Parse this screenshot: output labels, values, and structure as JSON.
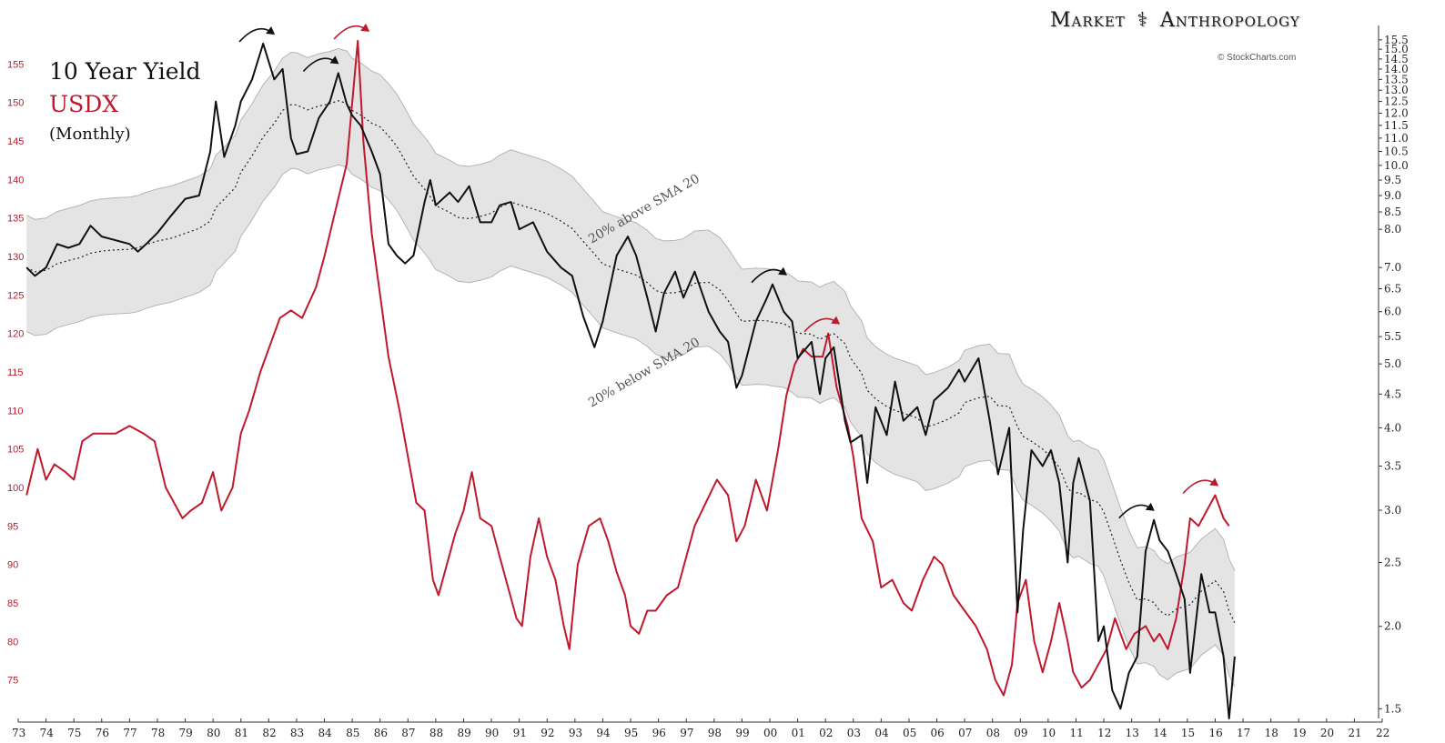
{
  "legend": {
    "yield_label": "10 Year Yield",
    "usdx_label": "USDX",
    "frequency_label": "(Monthly)"
  },
  "branding": {
    "brand_left": "Market",
    "brand_right": "Anthropology",
    "credit": "© StockCharts.com"
  },
  "chart_data": {
    "type": "line",
    "title": "",
    "x_axis": {
      "ticks": [
        "73",
        "74",
        "75",
        "76",
        "77",
        "78",
        "79",
        "80",
        "81",
        "82",
        "83",
        "84",
        "85",
        "86",
        "87",
        "88",
        "89",
        "90",
        "91",
        "92",
        "93",
        "94",
        "95",
        "96",
        "97",
        "98",
        "99",
        "00",
        "01",
        "02",
        "03",
        "04",
        "05",
        "06",
        "07",
        "08",
        "09",
        "10",
        "11",
        "12",
        "13",
        "14",
        "15",
        "16",
        "17",
        "18",
        "19",
        "20",
        "21",
        "22"
      ],
      "range": [
        1973,
        2022
      ]
    },
    "y_left": {
      "label": "",
      "ticks": [
        75,
        80,
        85,
        90,
        95,
        100,
        105,
        110,
        115,
        120,
        125,
        130,
        135,
        140,
        145,
        150,
        155
      ],
      "range": [
        70,
        160
      ],
      "color": "#c0182c"
    },
    "y_right": {
      "label": "",
      "scale": "log",
      "ticks": [
        "1.5",
        "2.0",
        "2.5",
        "3.0",
        "3.5",
        "4.0",
        "4.5",
        "5.0",
        "5.5",
        "6.0",
        "6.5",
        "7.0",
        "8.0",
        "8.5",
        "9.0",
        "9.5",
        "10.0",
        "10.5",
        "11.0",
        "11.5",
        "12.0",
        "12.5",
        "13.0",
        "13.5",
        "14.0",
        "14.5",
        "15.0",
        "15.5"
      ],
      "range": [
        1.45,
        16.3
      ]
    },
    "series": [
      {
        "name": "10 Year Yield",
        "axis": "right",
        "color": "#111111",
        "points": [
          [
            1973.3,
            7.0
          ],
          [
            1973.6,
            6.8
          ],
          [
            1974.0,
            7.0
          ],
          [
            1974.4,
            7.6
          ],
          [
            1974.8,
            7.5
          ],
          [
            1975.2,
            7.6
          ],
          [
            1975.6,
            8.1
          ],
          [
            1976.0,
            7.8
          ],
          [
            1976.5,
            7.7
          ],
          [
            1977.0,
            7.6
          ],
          [
            1977.3,
            7.4
          ],
          [
            1977.6,
            7.6
          ],
          [
            1978.0,
            7.9
          ],
          [
            1978.5,
            8.4
          ],
          [
            1979.0,
            8.9
          ],
          [
            1979.5,
            9.0
          ],
          [
            1979.9,
            10.5
          ],
          [
            1980.1,
            12.5
          ],
          [
            1980.4,
            10.3
          ],
          [
            1980.8,
            11.5
          ],
          [
            1981.0,
            12.5
          ],
          [
            1981.4,
            13.5
          ],
          [
            1981.8,
            15.3
          ],
          [
            1982.2,
            13.5
          ],
          [
            1982.5,
            14.0
          ],
          [
            1982.8,
            11.0
          ],
          [
            1983.0,
            10.4
          ],
          [
            1983.4,
            10.5
          ],
          [
            1983.8,
            11.8
          ],
          [
            1984.2,
            12.5
          ],
          [
            1984.5,
            13.8
          ],
          [
            1984.8,
            12.4
          ],
          [
            1985.0,
            11.9
          ],
          [
            1985.3,
            11.5
          ],
          [
            1985.7,
            10.5
          ],
          [
            1986.0,
            9.7
          ],
          [
            1986.3,
            7.6
          ],
          [
            1986.6,
            7.3
          ],
          [
            1986.9,
            7.1
          ],
          [
            1987.2,
            7.3
          ],
          [
            1987.6,
            8.8
          ],
          [
            1987.8,
            9.5
          ],
          [
            1988.0,
            8.7
          ],
          [
            1988.5,
            9.1
          ],
          [
            1988.8,
            8.8
          ],
          [
            1989.2,
            9.3
          ],
          [
            1989.6,
            8.2
          ],
          [
            1990.0,
            8.2
          ],
          [
            1990.3,
            8.7
          ],
          [
            1990.7,
            8.8
          ],
          [
            1991.0,
            8.0
          ],
          [
            1991.5,
            8.2
          ],
          [
            1992.0,
            7.4
          ],
          [
            1992.5,
            7.0
          ],
          [
            1992.9,
            6.8
          ],
          [
            1993.3,
            5.9
          ],
          [
            1993.7,
            5.3
          ],
          [
            1994.0,
            5.8
          ],
          [
            1994.5,
            7.3
          ],
          [
            1994.9,
            7.8
          ],
          [
            1995.2,
            7.3
          ],
          [
            1995.6,
            6.3
          ],
          [
            1995.9,
            5.6
          ],
          [
            1996.2,
            6.4
          ],
          [
            1996.6,
            6.9
          ],
          [
            1996.9,
            6.3
          ],
          [
            1997.3,
            6.9
          ],
          [
            1997.8,
            6.0
          ],
          [
            1998.2,
            5.6
          ],
          [
            1998.5,
            5.4
          ],
          [
            1998.8,
            4.6
          ],
          [
            1999.0,
            4.8
          ],
          [
            1999.5,
            5.8
          ],
          [
            1999.9,
            6.3
          ],
          [
            2000.1,
            6.6
          ],
          [
            2000.5,
            6.0
          ],
          [
            2000.8,
            5.8
          ],
          [
            2001.0,
            5.1
          ],
          [
            2001.5,
            5.4
          ],
          [
            2001.8,
            4.5
          ],
          [
            2002.0,
            5.1
          ],
          [
            2002.3,
            5.3
          ],
          [
            2002.7,
            4.1
          ],
          [
            2002.9,
            3.8
          ],
          [
            2003.3,
            3.9
          ],
          [
            2003.5,
            3.3
          ],
          [
            2003.8,
            4.3
          ],
          [
            2004.2,
            3.9
          ],
          [
            2004.5,
            4.7
          ],
          [
            2004.8,
            4.1
          ],
          [
            2005.3,
            4.3
          ],
          [
            2005.6,
            3.9
          ],
          [
            2005.9,
            4.4
          ],
          [
            2006.4,
            4.6
          ],
          [
            2006.8,
            4.9
          ],
          [
            2007.0,
            4.7
          ],
          [
            2007.5,
            5.1
          ],
          [
            2007.9,
            4.1
          ],
          [
            2008.2,
            3.4
          ],
          [
            2008.6,
            4.0
          ],
          [
            2008.9,
            2.1
          ],
          [
            2009.1,
            2.8
          ],
          [
            2009.4,
            3.7
          ],
          [
            2009.8,
            3.5
          ],
          [
            2010.1,
            3.7
          ],
          [
            2010.4,
            3.3
          ],
          [
            2010.7,
            2.5
          ],
          [
            2010.9,
            3.3
          ],
          [
            2011.1,
            3.6
          ],
          [
            2011.5,
            3.1
          ],
          [
            2011.8,
            1.9
          ],
          [
            2012.0,
            2.0
          ],
          [
            2012.3,
            1.6
          ],
          [
            2012.6,
            1.5
          ],
          [
            2012.9,
            1.7
          ],
          [
            2013.2,
            1.8
          ],
          [
            2013.5,
            2.6
          ],
          [
            2013.8,
            2.9
          ],
          [
            2014.0,
            2.7
          ],
          [
            2014.3,
            2.6
          ],
          [
            2014.6,
            2.4
          ],
          [
            2014.9,
            2.2
          ],
          [
            2015.1,
            1.7
          ],
          [
            2015.5,
            2.4
          ],
          [
            2015.8,
            2.1
          ],
          [
            2016.0,
            2.1
          ],
          [
            2016.3,
            1.8
          ],
          [
            2016.5,
            1.45
          ],
          [
            2016.7,
            1.8
          ]
        ]
      },
      {
        "name": "USDX",
        "axis": "left",
        "color": "#c0182c",
        "points": [
          [
            1973.3,
            99
          ],
          [
            1973.7,
            105
          ],
          [
            1974.0,
            101
          ],
          [
            1974.3,
            103
          ],
          [
            1974.7,
            102
          ],
          [
            1975.0,
            101
          ],
          [
            1975.3,
            106
          ],
          [
            1975.7,
            107
          ],
          [
            1976.0,
            107
          ],
          [
            1976.5,
            107
          ],
          [
            1977.0,
            108
          ],
          [
            1977.5,
            107
          ],
          [
            1977.9,
            106
          ],
          [
            1978.3,
            100
          ],
          [
            1978.6,
            98
          ],
          [
            1978.9,
            96
          ],
          [
            1979.2,
            97
          ],
          [
            1979.6,
            98
          ],
          [
            1980.0,
            102
          ],
          [
            1980.3,
            97
          ],
          [
            1980.7,
            100
          ],
          [
            1981.0,
            107
          ],
          [
            1981.3,
            110
          ],
          [
            1981.7,
            115
          ],
          [
            1982.0,
            118
          ],
          [
            1982.4,
            122
          ],
          [
            1982.8,
            123
          ],
          [
            1983.2,
            122
          ],
          [
            1983.7,
            126
          ],
          [
            1984.0,
            130
          ],
          [
            1984.4,
            136
          ],
          [
            1984.8,
            142
          ],
          [
            1985.0,
            150
          ],
          [
            1985.2,
            158
          ],
          [
            1985.4,
            145
          ],
          [
            1985.7,
            133
          ],
          [
            1986.0,
            125
          ],
          [
            1986.3,
            117
          ],
          [
            1986.7,
            110
          ],
          [
            1987.0,
            104
          ],
          [
            1987.3,
            98
          ],
          [
            1987.6,
            97
          ],
          [
            1987.9,
            88
          ],
          [
            1988.1,
            86
          ],
          [
            1988.4,
            90
          ],
          [
            1988.7,
            94
          ],
          [
            1989.0,
            97
          ],
          [
            1989.3,
            102
          ],
          [
            1989.6,
            96
          ],
          [
            1990.0,
            95
          ],
          [
            1990.3,
            91
          ],
          [
            1990.6,
            87
          ],
          [
            1990.9,
            83
          ],
          [
            1991.1,
            82
          ],
          [
            1991.4,
            91
          ],
          [
            1991.7,
            96
          ],
          [
            1992.0,
            91
          ],
          [
            1992.3,
            88
          ],
          [
            1992.6,
            82
          ],
          [
            1992.8,
            79
          ],
          [
            1993.1,
            90
          ],
          [
            1993.5,
            95
          ],
          [
            1993.9,
            96
          ],
          [
            1994.2,
            93
          ],
          [
            1994.5,
            89
          ],
          [
            1994.8,
            86
          ],
          [
            1995.0,
            82
          ],
          [
            1995.3,
            81
          ],
          [
            1995.6,
            84
          ],
          [
            1995.9,
            84
          ],
          [
            1996.3,
            86
          ],
          [
            1996.7,
            87
          ],
          [
            1997.0,
            91
          ],
          [
            1997.3,
            95
          ],
          [
            1997.7,
            98
          ],
          [
            1998.1,
            101
          ],
          [
            1998.5,
            99
          ],
          [
            1998.8,
            93
          ],
          [
            1999.1,
            95
          ],
          [
            1999.5,
            101
          ],
          [
            1999.9,
            97
          ],
          [
            2000.3,
            105
          ],
          [
            2000.6,
            112
          ],
          [
            2000.9,
            116
          ],
          [
            2001.2,
            118
          ],
          [
            2001.5,
            117
          ],
          [
            2001.9,
            117
          ],
          [
            2002.1,
            120
          ],
          [
            2002.4,
            113
          ],
          [
            2002.8,
            108
          ],
          [
            2003.0,
            104
          ],
          [
            2003.3,
            96
          ],
          [
            2003.7,
            93
          ],
          [
            2004.0,
            87
          ],
          [
            2004.4,
            88
          ],
          [
            2004.8,
            85
          ],
          [
            2005.1,
            84
          ],
          [
            2005.5,
            88
          ],
          [
            2005.9,
            91
          ],
          [
            2006.2,
            90
          ],
          [
            2006.6,
            86
          ],
          [
            2007.0,
            84
          ],
          [
            2007.4,
            82
          ],
          [
            2007.8,
            79
          ],
          [
            2008.1,
            75
          ],
          [
            2008.4,
            73
          ],
          [
            2008.7,
            77
          ],
          [
            2008.9,
            85
          ],
          [
            2009.2,
            88
          ],
          [
            2009.5,
            80
          ],
          [
            2009.8,
            76
          ],
          [
            2010.1,
            80
          ],
          [
            2010.4,
            85
          ],
          [
            2010.7,
            80
          ],
          [
            2010.9,
            76
          ],
          [
            2011.2,
            74
          ],
          [
            2011.5,
            75
          ],
          [
            2011.8,
            77
          ],
          [
            2012.1,
            79
          ],
          [
            2012.4,
            83
          ],
          [
            2012.8,
            79
          ],
          [
            2013.1,
            81
          ],
          [
            2013.5,
            82
          ],
          [
            2013.8,
            80
          ],
          [
            2014.0,
            81
          ],
          [
            2014.3,
            79
          ],
          [
            2014.6,
            83
          ],
          [
            2014.9,
            90
          ],
          [
            2015.1,
            96
          ],
          [
            2015.4,
            95
          ],
          [
            2015.7,
            97
          ],
          [
            2016.0,
            99
          ],
          [
            2016.3,
            96
          ],
          [
            2016.5,
            95
          ]
        ]
      }
    ],
    "bands": {
      "upper_label": "20% above SMA 20",
      "lower_label": "20% below SMA 20",
      "sma_style": "dotted"
    },
    "highlight_arrows": [
      {
        "color": "#111111",
        "x": 1981.6,
        "axis": "right",
        "y": 15.3
      },
      {
        "color": "#c0182c",
        "x": 1985.0,
        "axis": "left",
        "y": 158
      },
      {
        "color": "#111111",
        "x": 1983.9,
        "axis": "right",
        "y": 13.8
      },
      {
        "color": "#111111",
        "x": 2000.0,
        "axis": "right",
        "y": 6.6
      },
      {
        "color": "#c0182c",
        "x": 2001.9,
        "axis": "left",
        "y": 120
      },
      {
        "color": "#111111",
        "x": 2013.2,
        "axis": "right",
        "y": 2.9
      },
      {
        "color": "#c0182c",
        "x": 2015.5,
        "axis": "left",
        "y": 99
      }
    ],
    "grid": false
  },
  "colors": {
    "yield": "#111111",
    "usdx": "#c0182c",
    "band_fill": "#e4e4e4",
    "band_stroke": "#b5b5b5",
    "sma": "#222222"
  }
}
